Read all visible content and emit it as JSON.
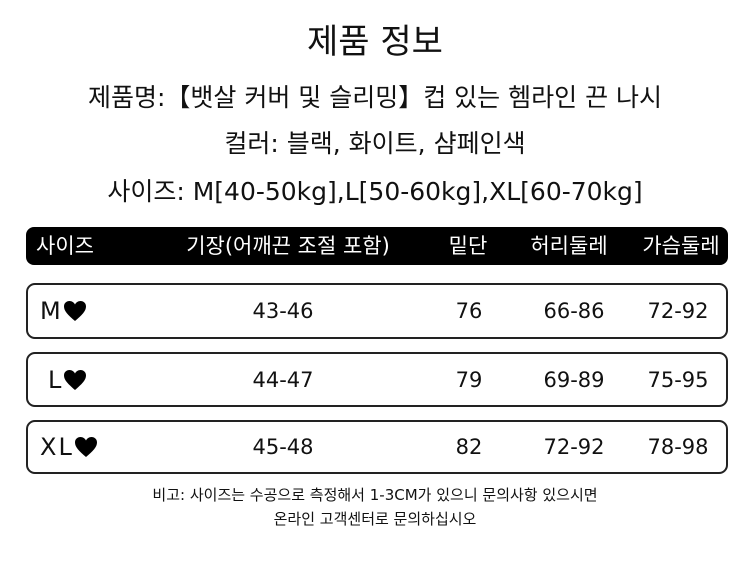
{
  "title": "제품 정보",
  "info": [
    "제품명:【뱃살 커버 및 슬리밍】컵 있는 헴라인 끈 나시",
    "컬러: 블랙, 화이트, 샴페인색",
    "사이즈: M[40-50kg],L[50-60kg],XL[60-70kg]"
  ],
  "table": {
    "header": [
      "사이즈",
      "기장(어깨끈 조절 포함)",
      "밑단",
      "허리둘레",
      "가슴둘레"
    ],
    "rows": [
      [
        "M",
        "43-46",
        "76",
        "66-86",
        "72-92"
      ],
      [
        "L",
        "44-47",
        "79",
        "69-89",
        "75-95"
      ],
      [
        "XL",
        "45-48",
        "82",
        "72-92",
        "78-98"
      ]
    ]
  },
  "note": [
    "비고: 사이즈는 수공으로 측정해서 1-3CM가 있으니 문의사항 있으시면",
    "온라인 고객센터로 문의하십시오"
  ]
}
